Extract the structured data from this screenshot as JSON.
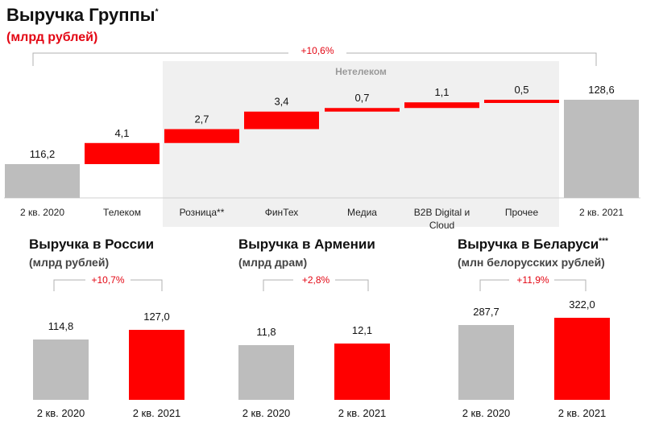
{
  "main": {
    "title": "Выручка Группы",
    "title_mark": "*",
    "unit": "(млрд рублей)",
    "growth": "+10,6%",
    "group_label": "Нетелеком"
  },
  "colors": {
    "gray": "#bdbdbd",
    "red": "#ff0000",
    "accent_text": "#e30613",
    "panel": "#f0f0f0"
  },
  "chart_data": [
    {
      "type": "bar",
      "subtype": "waterfall",
      "categories": [
        "2 кв. 2020",
        "Телеком",
        "Розница**",
        "ФинТех",
        "Медиа",
        "B2B Digital и Cloud",
        "Прочее",
        "2 кв. 2021"
      ],
      "values": [
        116.2,
        4.1,
        2.7,
        3.4,
        0.7,
        1.1,
        0.5,
        128.6
      ],
      "labels": [
        "116,2",
        "4,1",
        "2,7",
        "3,4",
        "0,7",
        "1,1",
        "0,5",
        "128,6"
      ],
      "kinds": [
        "total",
        "delta",
        "delta",
        "delta",
        "delta",
        "delta",
        "delta",
        "total"
      ],
      "title": "Выручка Группы",
      "unit": "(млрд рублей)",
      "growth": "+10,6%"
    },
    {
      "type": "bar",
      "title": "Выручка в России",
      "unit": "(млрд рублей)",
      "categories": [
        "2 кв. 2020",
        "2 кв. 2021"
      ],
      "values": [
        114.8,
        127.0
      ],
      "labels": [
        "114,8",
        "127,0"
      ],
      "growth": "+10,7%"
    },
    {
      "type": "bar",
      "title": "Выручка в Армении",
      "unit": "(млрд драм)",
      "categories": [
        "2 кв. 2020",
        "2 кв. 2021"
      ],
      "values": [
        11.8,
        12.1
      ],
      "labels": [
        "11,8",
        "12,1"
      ],
      "growth": "+2,8%"
    },
    {
      "type": "bar",
      "title": "Выручка в Беларуси",
      "title_mark": "***",
      "unit": "(млн белорусских рублей)",
      "categories": [
        "2 кв. 2020",
        "2 кв. 2021"
      ],
      "values": [
        287.7,
        322.0
      ],
      "labels": [
        "287,7",
        "322,0"
      ],
      "growth": "+11,9%"
    }
  ]
}
